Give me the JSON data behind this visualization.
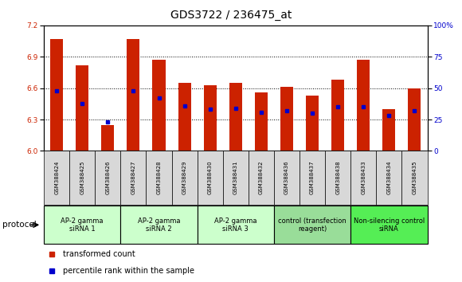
{
  "title": "GDS3722 / 236475_at",
  "samples": [
    "GSM388424",
    "GSM388425",
    "GSM388426",
    "GSM388427",
    "GSM388428",
    "GSM388429",
    "GSM388430",
    "GSM388431",
    "GSM388432",
    "GSM388436",
    "GSM388437",
    "GSM388438",
    "GSM388433",
    "GSM388434",
    "GSM388435"
  ],
  "transformed_count": [
    7.07,
    6.82,
    6.25,
    7.07,
    6.87,
    6.65,
    6.63,
    6.65,
    6.56,
    6.61,
    6.53,
    6.68,
    6.87,
    6.4,
    6.6
  ],
  "percentile_rank": [
    48,
    38,
    23,
    48,
    42,
    36,
    33,
    34,
    31,
    32,
    30,
    35,
    35,
    28,
    32
  ],
  "ymin": 6.0,
  "ymax": 7.2,
  "yticks": [
    6.0,
    6.3,
    6.6,
    6.9,
    7.2
  ],
  "y2min": 0,
  "y2max": 100,
  "y2ticks": [
    0,
    25,
    50,
    75,
    100
  ],
  "bar_color": "#CC2200",
  "dot_color": "#0000CC",
  "protocol_groups": [
    {
      "label": "AP-2 gamma\nsiRNA 1",
      "indices": [
        0,
        1,
        2
      ],
      "color": "#CCFFCC"
    },
    {
      "label": "AP-2 gamma\nsiRNA 2",
      "indices": [
        3,
        4,
        5
      ],
      "color": "#CCFFCC"
    },
    {
      "label": "AP-2 gamma\nsiRNA 3",
      "indices": [
        6,
        7,
        8
      ],
      "color": "#CCFFCC"
    },
    {
      "label": "control (transfection\nreagent)",
      "indices": [
        9,
        10,
        11
      ],
      "color": "#99DD99"
    },
    {
      "label": "Non-silencing control\nsiRNA",
      "indices": [
        12,
        13,
        14
      ],
      "color": "#55EE55"
    }
  ],
  "legend": [
    {
      "label": "transformed count",
      "color": "#CC2200"
    },
    {
      "label": "percentile rank within the sample",
      "color": "#0000CC"
    }
  ],
  "protocol_label": "protocol",
  "title_fontsize": 10,
  "tick_fontsize": 6.5,
  "bar_width": 0.5
}
